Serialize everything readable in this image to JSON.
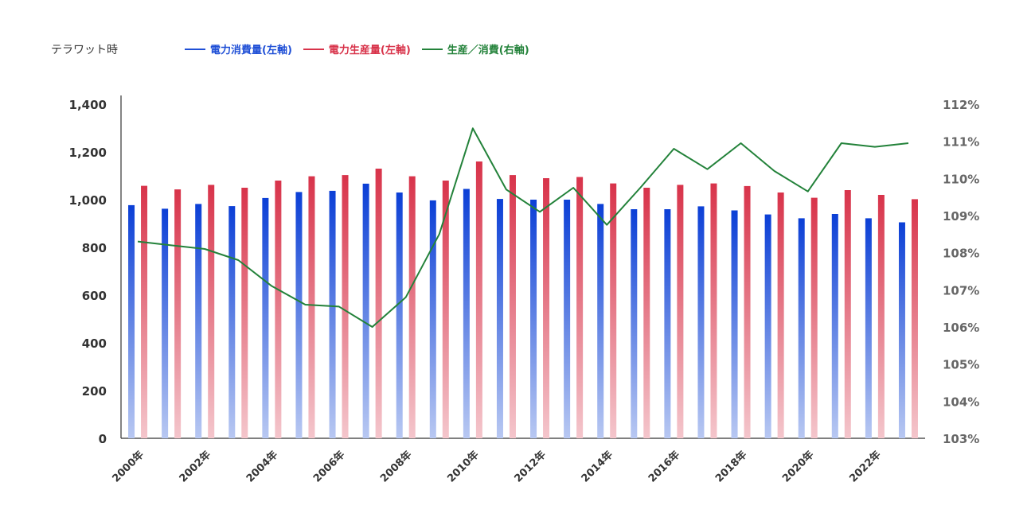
{
  "chart_data": {
    "type": "bar",
    "unit_label": "テラワット時",
    "legend": [
      {
        "label": "電力消費量(左軸)",
        "color": "#1f4fd6"
      },
      {
        "label": "電力生産量(左軸)",
        "color": "#d8334a"
      },
      {
        "label": "生産／消費(右軸)",
        "color": "#23823a"
      }
    ],
    "colors": {
      "consumption": "#0b3fd6",
      "consumption_fade": "#b8c8f2",
      "production": "#d8334a",
      "production_fade": "#f4c6cc",
      "ratio": "#23823a",
      "axis": "#333333"
    },
    "years": [
      2000,
      2001,
      2002,
      2003,
      2004,
      2005,
      2006,
      2007,
      2008,
      2009,
      2010,
      2011,
      2012,
      2013,
      2014,
      2015,
      2016,
      2017,
      2018,
      2019,
      2020,
      2021,
      2022,
      2023
    ],
    "x_tick_labels": [
      "2000年",
      "2002年",
      "2004年",
      "2006年",
      "2008年",
      "2010年",
      "2012年",
      "2014年",
      "2016年",
      "2018年",
      "2020年",
      "2022年"
    ],
    "x_tick_years": [
      2000,
      2002,
      2004,
      2006,
      2008,
      2010,
      2012,
      2014,
      2016,
      2018,
      2020,
      2022
    ],
    "series": [
      {
        "name": "電力消費量(左軸)",
        "axis": "left",
        "type": "bar",
        "values": [
          977,
          962,
          982,
          973,
          1007,
          1032,
          1037,
          1067,
          1030,
          997,
          1045,
          1003,
          1000,
          1000,
          982,
          960,
          960,
          972,
          955,
          938,
          922,
          940,
          922,
          905
        ]
      },
      {
        "name": "電力生産量(左軸)",
        "axis": "left",
        "type": "bar",
        "values": [
          1058,
          1043,
          1062,
          1050,
          1080,
          1098,
          1103,
          1130,
          1098,
          1080,
          1160,
          1103,
          1090,
          1095,
          1068,
          1050,
          1062,
          1068,
          1057,
          1030,
          1008,
          1040,
          1020,
          1002
        ]
      },
      {
        "name": "生産／消費(右軸)",
        "axis": "right",
        "type": "line",
        "values": [
          108.3,
          108.2,
          108.1,
          107.8,
          107.1,
          106.6,
          106.55,
          106.0,
          106.8,
          108.5,
          111.35,
          109.7,
          109.1,
          109.75,
          108.75,
          109.75,
          110.8,
          110.25,
          110.95,
          110.2,
          109.65,
          110.95,
          110.85,
          110.95
        ]
      }
    ],
    "y_left": {
      "min": 0,
      "max": 1400,
      "ticks": [
        "0",
        "200",
        "400",
        "600",
        "800",
        "1,000",
        "1,200",
        "1,400"
      ]
    },
    "y_right": {
      "min": 103,
      "max": 112,
      "ticks": [
        "103%",
        "104%",
        "105%",
        "106%",
        "107%",
        "108%",
        "109%",
        "110%",
        "111%",
        "112%"
      ]
    }
  }
}
